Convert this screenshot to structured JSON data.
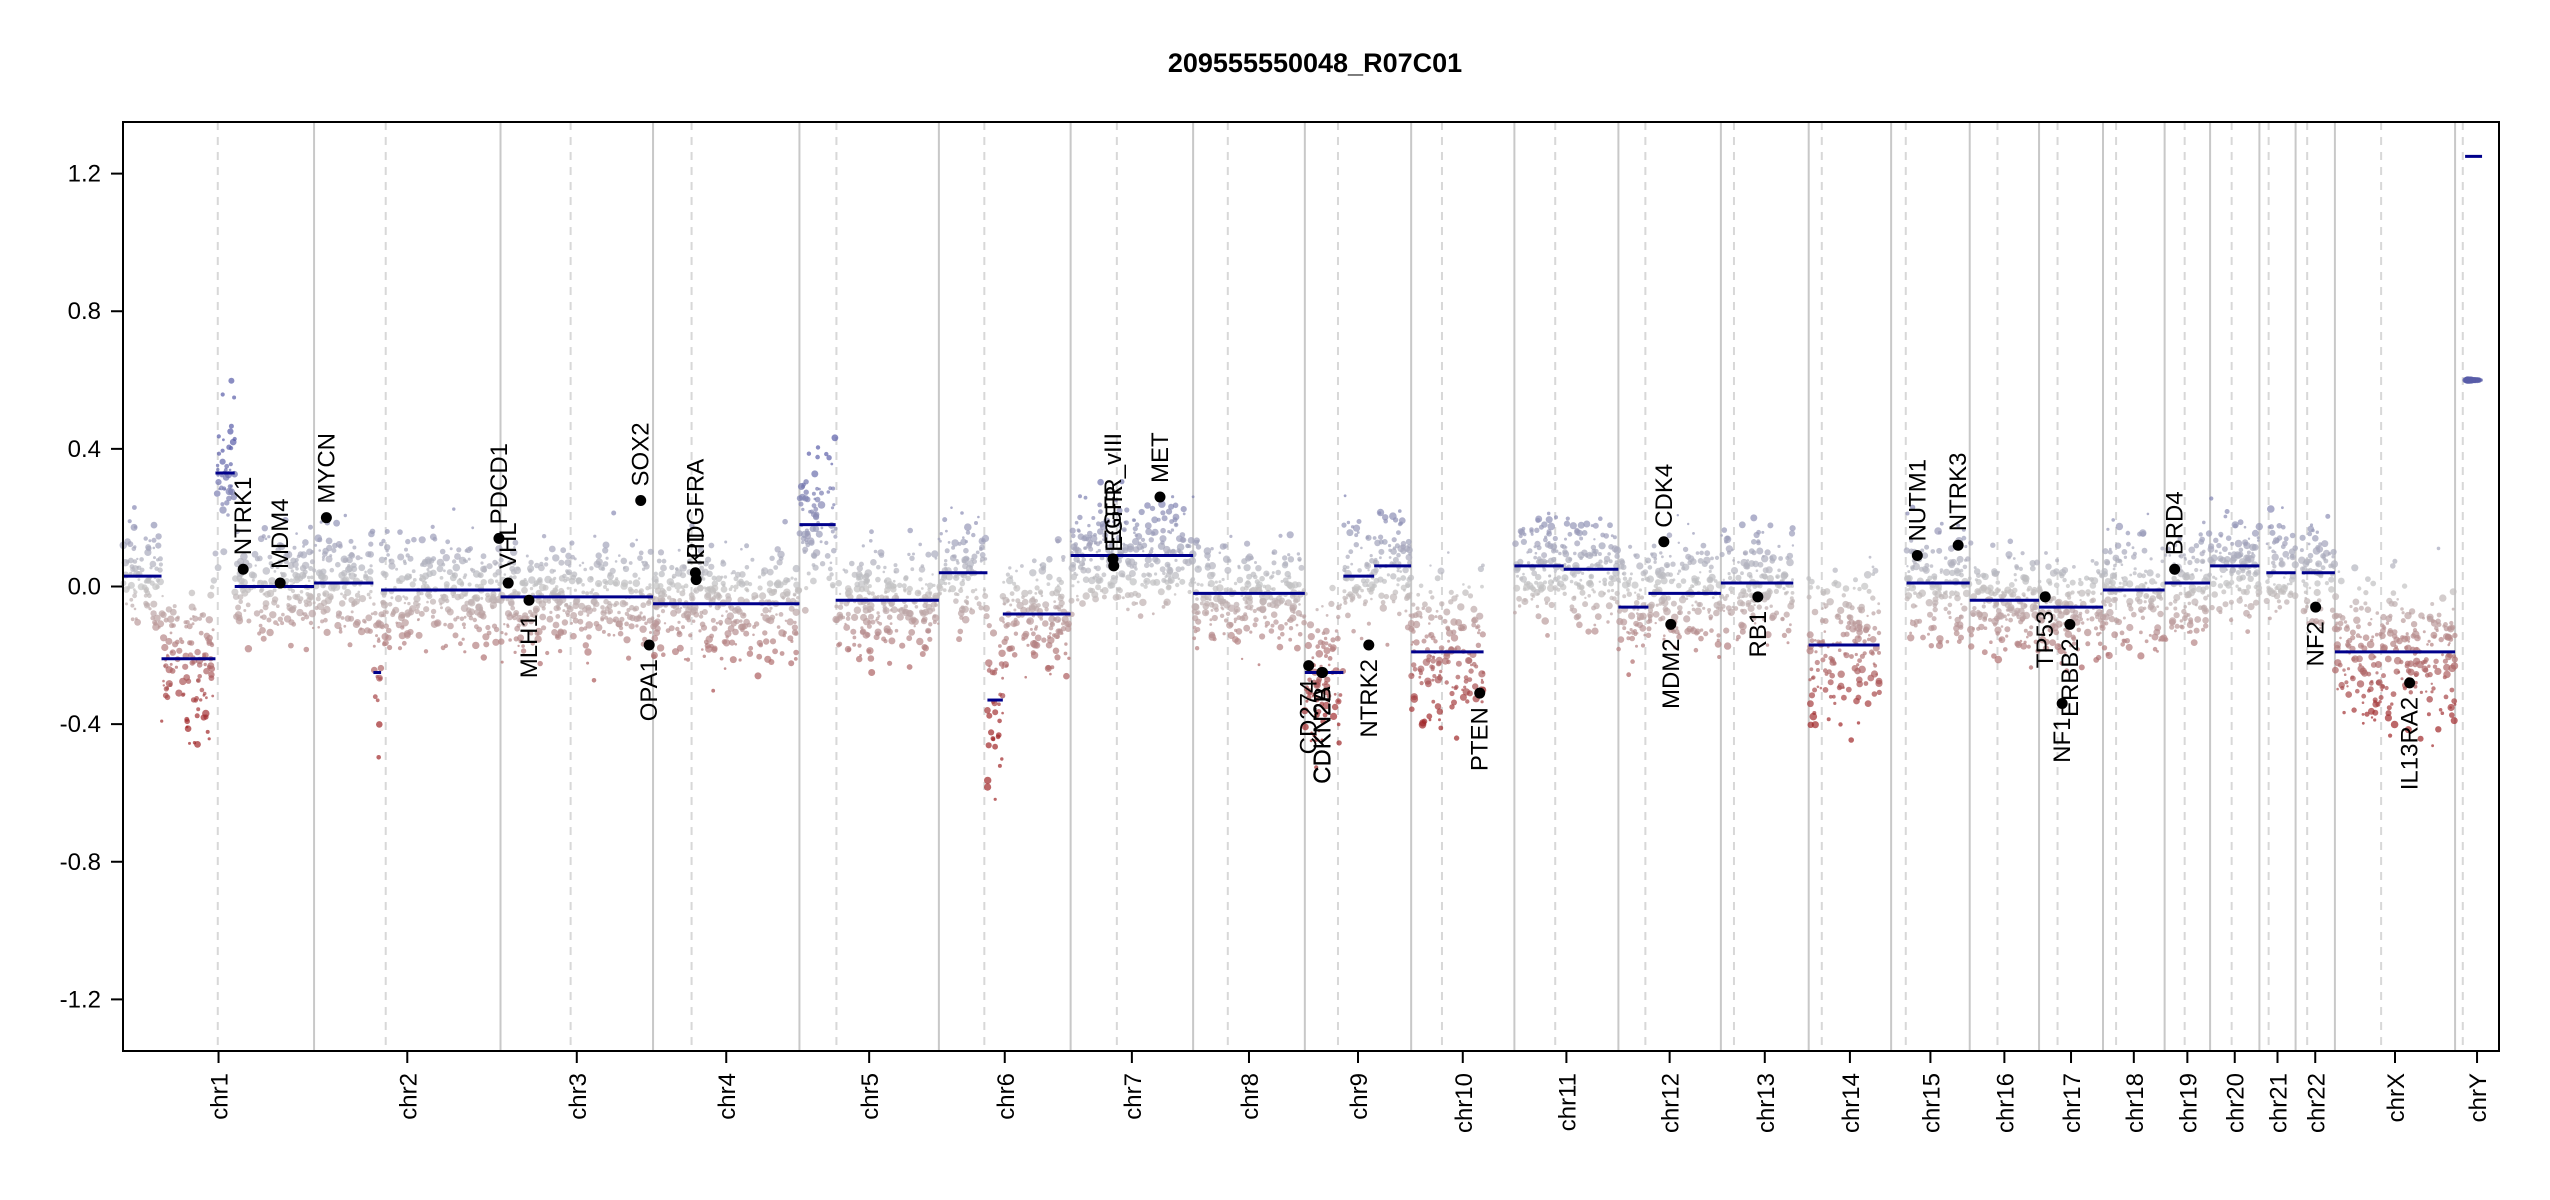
{
  "chart_data": {
    "type": "scatter",
    "title": "209555550048_R07C01",
    "xlabel": "",
    "ylabel": "",
    "ylim": [
      -1.35,
      1.35
    ],
    "yticks": [
      1.2,
      0.8,
      0.4,
      0.0,
      -0.4,
      -0.8,
      -1.2
    ],
    "yticklabels": [
      "1.2",
      "0.8",
      "0.4",
      "0.0",
      "-0.4",
      "-0.8",
      "-1.2"
    ],
    "chromosomes": [
      {
        "name": "chr1",
        "start": 0,
        "end": 248,
        "centromere": 123
      },
      {
        "name": "chr2",
        "start": 248,
        "end": 490,
        "centromere": 93
      },
      {
        "name": "chr3",
        "start": 490,
        "end": 688,
        "centromere": 91
      },
      {
        "name": "chr4",
        "start": 688,
        "end": 878,
        "centromere": 50
      },
      {
        "name": "chr5",
        "start": 878,
        "end": 1059,
        "centromere": 48
      },
      {
        "name": "chr6",
        "start": 1059,
        "end": 1230,
        "centromere": 59
      },
      {
        "name": "chr7",
        "start": 1230,
        "end": 1389,
        "centromere": 60
      },
      {
        "name": "chr8",
        "start": 1389,
        "end": 1534,
        "centromere": 45
      },
      {
        "name": "chr9",
        "start": 1534,
        "end": 1672,
        "centromere": 43
      },
      {
        "name": "chr10",
        "start": 1672,
        "end": 1806,
        "centromere": 40
      },
      {
        "name": "chr11",
        "start": 1806,
        "end": 1941,
        "centromere": 53
      },
      {
        "name": "chr12",
        "start": 1941,
        "end": 2074,
        "centromere": 35
      },
      {
        "name": "chr13",
        "start": 2074,
        "end": 2188,
        "centromere": 17
      },
      {
        "name": "chr14",
        "start": 2188,
        "end": 2295,
        "centromere": 17
      },
      {
        "name": "chr15",
        "start": 2295,
        "end": 2397,
        "centromere": 19
      },
      {
        "name": "chr16",
        "start": 2397,
        "end": 2487,
        "centromere": 36
      },
      {
        "name": "chr17",
        "start": 2487,
        "end": 2570,
        "centromere": 24
      },
      {
        "name": "chr18",
        "start": 2570,
        "end": 2650,
        "centromere": 17
      },
      {
        "name": "chr19",
        "start": 2650,
        "end": 2709,
        "centromere": 26
      },
      {
        "name": "chr20",
        "start": 2709,
        "end": 2773,
        "centromere": 28
      },
      {
        "name": "chr21",
        "start": 2773,
        "end": 2820,
        "centromere": 12
      },
      {
        "name": "chr22",
        "start": 2820,
        "end": 2871,
        "centromere": 15
      },
      {
        "name": "chrX",
        "start": 2871,
        "end": 3027,
        "centromere": 60
      },
      {
        "name": "chrY",
        "start": 3027,
        "end": 3084,
        "centromere": 10
      }
    ],
    "segments": [
      {
        "chr": "chr1",
        "start": 0,
        "end": 50,
        "value": 0.03
      },
      {
        "chr": "chr1",
        "start": 50,
        "end": 120,
        "value": -0.21
      },
      {
        "chr": "chr1",
        "start": 120,
        "end": 145,
        "value": 0.33
      },
      {
        "chr": "chr1",
        "start": 145,
        "end": 248,
        "value": 0.0
      },
      {
        "chr": "chr2",
        "start": 248,
        "end": 325,
        "value": 0.01
      },
      {
        "chr": "chr2",
        "start": 325,
        "end": 335,
        "value": -0.25
      },
      {
        "chr": "chr2",
        "start": 335,
        "end": 490,
        "value": -0.01
      },
      {
        "chr": "chr3",
        "start": 490,
        "end": 688,
        "value": -0.03
      },
      {
        "chr": "chr4",
        "start": 688,
        "end": 878,
        "value": -0.05
      },
      {
        "chr": "chr5",
        "start": 878,
        "end": 925,
        "value": 0.18
      },
      {
        "chr": "chr5",
        "start": 925,
        "end": 1059,
        "value": -0.04
      },
      {
        "chr": "chr6",
        "start": 1059,
        "end": 1122,
        "value": 0.04
      },
      {
        "chr": "chr6",
        "start": 1122,
        "end": 1142,
        "value": -0.33
      },
      {
        "chr": "chr6",
        "start": 1142,
        "end": 1230,
        "value": -0.08
      },
      {
        "chr": "chr7",
        "start": 1230,
        "end": 1389,
        "value": 0.09
      },
      {
        "chr": "chr8",
        "start": 1389,
        "end": 1534,
        "value": -0.02
      },
      {
        "chr": "chr9",
        "start": 1534,
        "end": 1584,
        "value": -0.25
      },
      {
        "chr": "chr9",
        "start": 1584,
        "end": 1624,
        "value": 0.03
      },
      {
        "chr": "chr9",
        "start": 1624,
        "end": 1672,
        "value": 0.06
      },
      {
        "chr": "chr10",
        "start": 1672,
        "end": 1766,
        "value": -0.19
      },
      {
        "chr": "chr11",
        "start": 1806,
        "end": 1870,
        "value": 0.06
      },
      {
        "chr": "chr11",
        "start": 1870,
        "end": 1941,
        "value": 0.05
      },
      {
        "chr": "chr12",
        "start": 1941,
        "end": 1980,
        "value": -0.06
      },
      {
        "chr": "chr12",
        "start": 1980,
        "end": 2074,
        "value": -0.02
      },
      {
        "chr": "chr13",
        "start": 2074,
        "end": 2168,
        "value": 0.01
      },
      {
        "chr": "chr14",
        "start": 2188,
        "end": 2280,
        "value": -0.17
      },
      {
        "chr": "chr15",
        "start": 2315,
        "end": 2397,
        "value": 0.01
      },
      {
        "chr": "chr16",
        "start": 2397,
        "end": 2487,
        "value": -0.04
      },
      {
        "chr": "chr17",
        "start": 2487,
        "end": 2570,
        "value": -0.06
      },
      {
        "chr": "chr18",
        "start": 2570,
        "end": 2650,
        "value": -0.01
      },
      {
        "chr": "chr19",
        "start": 2650,
        "end": 2709,
        "value": 0.01
      },
      {
        "chr": "chr20",
        "start": 2709,
        "end": 2773,
        "value": 0.06
      },
      {
        "chr": "chr21",
        "start": 2782,
        "end": 2820,
        "value": 0.04
      },
      {
        "chr": "chr22",
        "start": 2828,
        "end": 2871,
        "value": 0.04
      },
      {
        "chr": "chrX",
        "start": 2871,
        "end": 3027,
        "value": -0.19
      },
      {
        "chr": "chrY",
        "start": 3040,
        "end": 3062,
        "value": 1.25
      }
    ],
    "genes": [
      {
        "name": "NTRK1",
        "pos": 156,
        "value": 0.05
      },
      {
        "name": "MDM4",
        "pos": 204,
        "value": 0.01
      },
      {
        "name": "MYCN",
        "pos": 264,
        "value": 0.2
      },
      {
        "name": "PDCD1",
        "pos": 488,
        "value": 0.14
      },
      {
        "name": "VHL",
        "pos": 500,
        "value": 0.01
      },
      {
        "name": "MLH1",
        "pos": 527,
        "value": -0.04
      },
      {
        "name": "SOX2",
        "pos": 672,
        "value": 0.25
      },
      {
        "name": "OPA1",
        "pos": 683,
        "value": -0.17
      },
      {
        "name": "PDGFRA",
        "pos": 743,
        "value": 0.04
      },
      {
        "name": "KIT",
        "pos": 744,
        "value": 0.02
      },
      {
        "name": "EGFR_vIII",
        "pos": 1285,
        "value": 0.08
      },
      {
        "name": "EGFR",
        "pos": 1286,
        "value": 0.06
      },
      {
        "name": "MET",
        "pos": 1346,
        "value": 0.26
      },
      {
        "name": "CD274",
        "pos": 1539,
        "value": -0.23
      },
      {
        "name": "CDKN2A",
        "pos": 1556,
        "value": -0.25
      },
      {
        "name": "CDKN2B",
        "pos": 1557,
        "value": -0.25
      },
      {
        "name": "NTRK2",
        "pos": 1617,
        "value": -0.17
      },
      {
        "name": "PTEN",
        "pos": 1761,
        "value": -0.31
      },
      {
        "name": "CDK4",
        "pos": 2000,
        "value": 0.13
      },
      {
        "name": "MDM2",
        "pos": 2009,
        "value": -0.11
      },
      {
        "name": "RB1",
        "pos": 2122,
        "value": -0.03
      },
      {
        "name": "NUTM1",
        "pos": 2329,
        "value": 0.09
      },
      {
        "name": "NTRK3",
        "pos": 2382,
        "value": 0.12
      },
      {
        "name": "TP53",
        "pos": 2495,
        "value": -0.03
      },
      {
        "name": "NF1",
        "pos": 2517,
        "value": -0.34
      },
      {
        "name": "ERBB2",
        "pos": 2527,
        "value": -0.11
      },
      {
        "name": "BRD4",
        "pos": 2663,
        "value": 0.05
      },
      {
        "name": "NF2",
        "pos": 2846,
        "value": -0.06
      },
      {
        "name": "IL13RA2",
        "pos": 2968,
        "value": -0.28
      }
    ]
  }
}
